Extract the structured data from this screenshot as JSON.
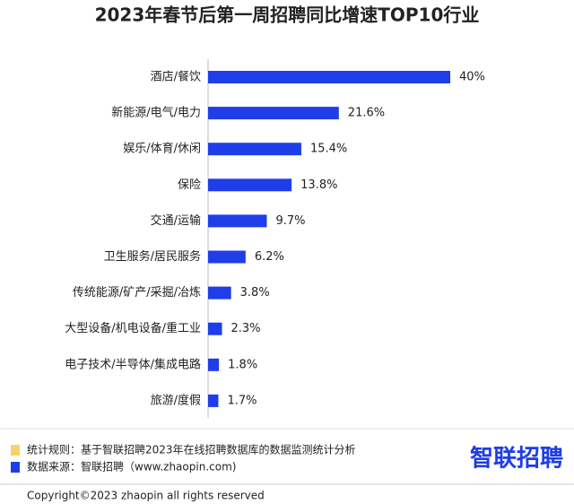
{
  "chart_data": {
    "type": "bar",
    "orientation": "horizontal",
    "title": "2023年春节后第一周招聘同比增速TOP10行业",
    "categories": [
      "酒店/餐饮",
      "新能源/电气/电力",
      "娱乐/体育/休闲",
      "保险",
      "交通/运输",
      "卫生服务/居民服务",
      "传统能源/矿产/采掘/冶炼",
      "大型设备/机电设备/重工业",
      "电子技术/半导体/集成电路",
      "旅游/度假"
    ],
    "values": [
      40,
      21.6,
      15.4,
      13.8,
      9.7,
      6.2,
      3.8,
      2.3,
      1.8,
      1.7
    ],
    "value_labels": [
      "40%",
      "21.6%",
      "15.4%",
      "13.8%",
      "9.7%",
      "6.2%",
      "3.8%",
      "2.3%",
      "1.8%",
      "1.7%"
    ],
    "color": "#1f3de8"
  },
  "footer": {
    "notes": [
      "统计规则：基于智联招聘2023年在线招聘数据库的数据监测统计分析",
      "数据来源：智联招聘（www.zhaopin.com)"
    ],
    "logo": "智联招聘",
    "copyright": "Copyright©2023 zhaopin all rights reserved"
  }
}
